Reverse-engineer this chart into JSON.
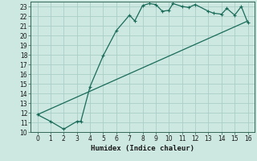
{
  "xlabel": "Humidex (Indice chaleur)",
  "ylabel": "",
  "bg_color": "#cce8e0",
  "line_color": "#1a6b5a",
  "grid_color": "#aacfc8",
  "xlim": [
    -0.5,
    16.5
  ],
  "ylim": [
    10,
    23.5
  ],
  "xticks": [
    0,
    1,
    2,
    3,
    4,
    5,
    6,
    7,
    8,
    9,
    10,
    11,
    12,
    13,
    14,
    15,
    16
  ],
  "yticks": [
    10,
    11,
    12,
    13,
    14,
    15,
    16,
    17,
    18,
    19,
    20,
    21,
    22,
    23
  ],
  "curve1_x": [
    0,
    1,
    2,
    3,
    3.3,
    4,
    5,
    6,
    7,
    7.4,
    8,
    8.5,
    9,
    9.5,
    10,
    10.3,
    11,
    11.5,
    12,
    13,
    13.4,
    14,
    14.4,
    15,
    15.5,
    16
  ],
  "curve1_y": [
    11.8,
    11.1,
    10.3,
    11.1,
    11.1,
    14.7,
    17.9,
    20.5,
    22.1,
    21.5,
    23.1,
    23.3,
    23.2,
    22.5,
    22.6,
    23.3,
    23.0,
    22.9,
    23.2,
    22.5,
    22.3,
    22.2,
    22.8,
    22.1,
    23.0,
    21.3
  ],
  "curve2_x": [
    0,
    16
  ],
  "curve2_y": [
    11.8,
    21.5
  ],
  "tick_fontsize": 5.5,
  "xlabel_fontsize": 6.5
}
